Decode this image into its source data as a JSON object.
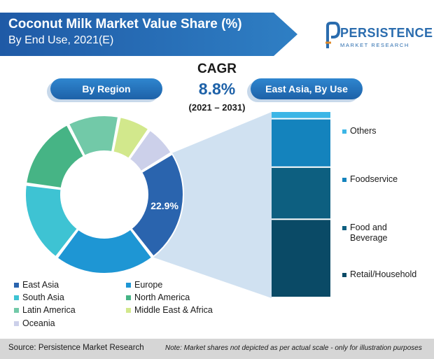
{
  "header": {
    "title": "Coconut Milk Market Value Share (%)",
    "subtitle": "By End Use, 2021(E)"
  },
  "logo": {
    "word": "PERSISTENCE",
    "sub": "MARKET RESEARCH"
  },
  "pills": {
    "region": "By Region",
    "east_asia": "East Asia, By Use"
  },
  "cagr": {
    "label": "CAGR",
    "value": "8.8%",
    "period": "(2021 – 2031)"
  },
  "footer": {
    "source": "Source: Persistence Market Research",
    "note": "Note: Market shares not depicted as per actual scale - only for illustration purposes"
  },
  "chart_data": [
    {
      "type": "pie",
      "subtype": "donut",
      "title": "By Region",
      "categories": [
        "East Asia",
        "Europe",
        "South Asia",
        "North America",
        "Latin America",
        "Middle East & Africa",
        "Oceania"
      ],
      "values": [
        22.9,
        20.5,
        16.5,
        15.0,
        10.5,
        6.5,
        6.5
      ],
      "colors": [
        "#2a64ae",
        "#1e96d4",
        "#3ec3d3",
        "#46b485",
        "#72c9a8",
        "#d2e88c",
        "#ccd0ea"
      ],
      "labels": [
        {
          "category": "East Asia",
          "text": "22.9%"
        }
      ],
      "legend": "bottom-left"
    },
    {
      "type": "bar",
      "subtype": "stacked-100",
      "title": "East Asia, By Use",
      "categories": [
        "Others",
        "Foodservice",
        "Food and Beverage",
        "Retail/Household"
      ],
      "values": [
        4,
        26,
        28,
        42
      ],
      "colors": [
        "#3cb6e6",
        "#1483bd",
        "#0d5f80",
        "#0a4a66"
      ],
      "legend": "right"
    }
  ]
}
